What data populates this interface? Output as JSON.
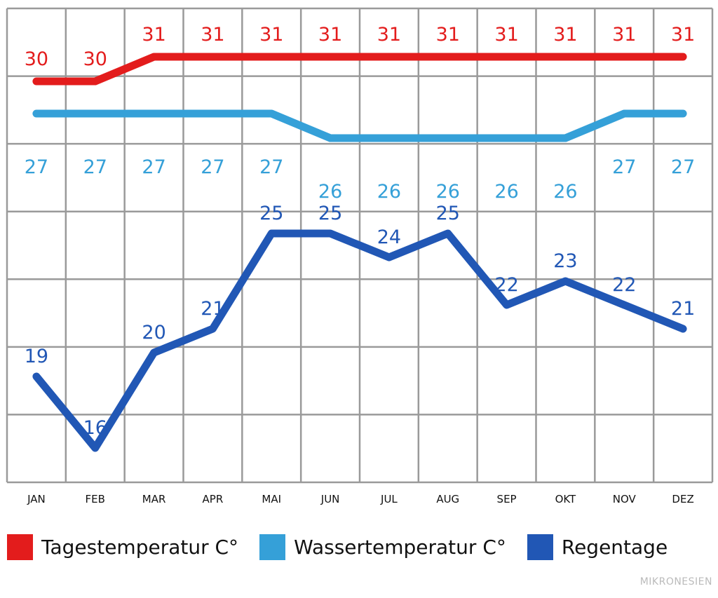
{
  "chart_data": {
    "type": "line",
    "categories": [
      "JAN",
      "FEB",
      "MAR",
      "APR",
      "MAI",
      "JUN",
      "JUL",
      "AUG",
      "SEP",
      "OKT",
      "NOV",
      "DEZ"
    ],
    "series": [
      {
        "name": "Tagestemperatur C°",
        "color": "#e31c1c",
        "values": [
          30,
          30,
          31,
          31,
          31,
          31,
          31,
          31,
          31,
          31,
          31,
          31
        ]
      },
      {
        "name": "Wassertemperatur C°",
        "color": "#35a0d8",
        "values": [
          27,
          27,
          27,
          27,
          27,
          26,
          26,
          26,
          26,
          26,
          27,
          27
        ]
      },
      {
        "name": "Regentage",
        "color": "#2157b5",
        "values": [
          19,
          16,
          20,
          21,
          25,
          25,
          24,
          25,
          22,
          23,
          22,
          21
        ]
      }
    ],
    "legend": "bottom",
    "grid": true
  },
  "legend_labels": [
    "Tagestemperatur C°",
    "Wassertemperatur C°",
    "Regentage"
  ],
  "credit": "MIKRONESIEN"
}
